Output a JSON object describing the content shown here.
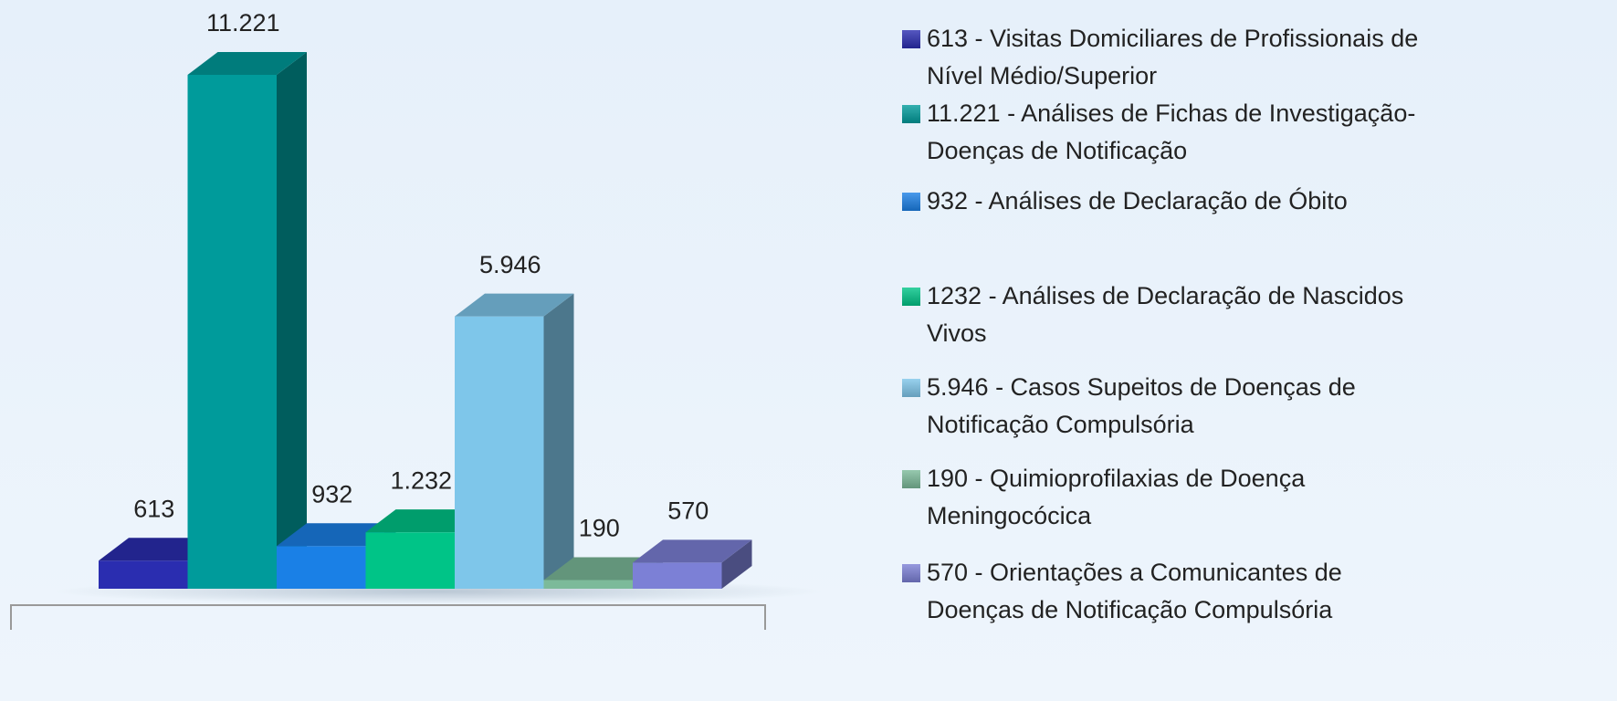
{
  "chart_data": {
    "type": "bar3d",
    "series": [
      {
        "name": "613 - Visitas Domiciliares de Profissionais de Nível Médio/Superior",
        "color": "#2a2db0",
        "values": [
          613
        ],
        "value_labels": [
          "613"
        ]
      },
      {
        "name": "11.221 - Análises de Fichas de Investigação- Doenças de Notificação",
        "color": "#009b9b",
        "values": [
          11221
        ],
        "value_labels": [
          "11.221"
        ]
      },
      {
        "name": "932 - Análises de Declaração de Óbito",
        "color": "#1a80e6",
        "values": [
          932
        ],
        "value_labels": [
          "932"
        ]
      },
      {
        "name": "1232 - Análises de Declaração de Nascidos Vivos",
        "color": "#00c487",
        "values": [
          1232
        ],
        "value_labels": [
          "1.232"
        ]
      },
      {
        "name": "5.946 - Casos Supeitos de Doenças de Notificação Compulsória",
        "color": "#7ec6ea",
        "values": [
          5946
        ],
        "value_labels": [
          "5.946"
        ]
      },
      {
        "name": "190 - Quimioprofilaxias de Doença Meningocócica",
        "color": "#7cba9a",
        "values": [
          190
        ],
        "value_labels": [
          "190"
        ]
      },
      {
        "name": "570 - Orientações a Comunicantes de Doenças de Notificação Compulsória",
        "color": "#7c80d6",
        "values": [
          570
        ],
        "value_labels": [
          "570"
        ]
      }
    ]
  }
}
